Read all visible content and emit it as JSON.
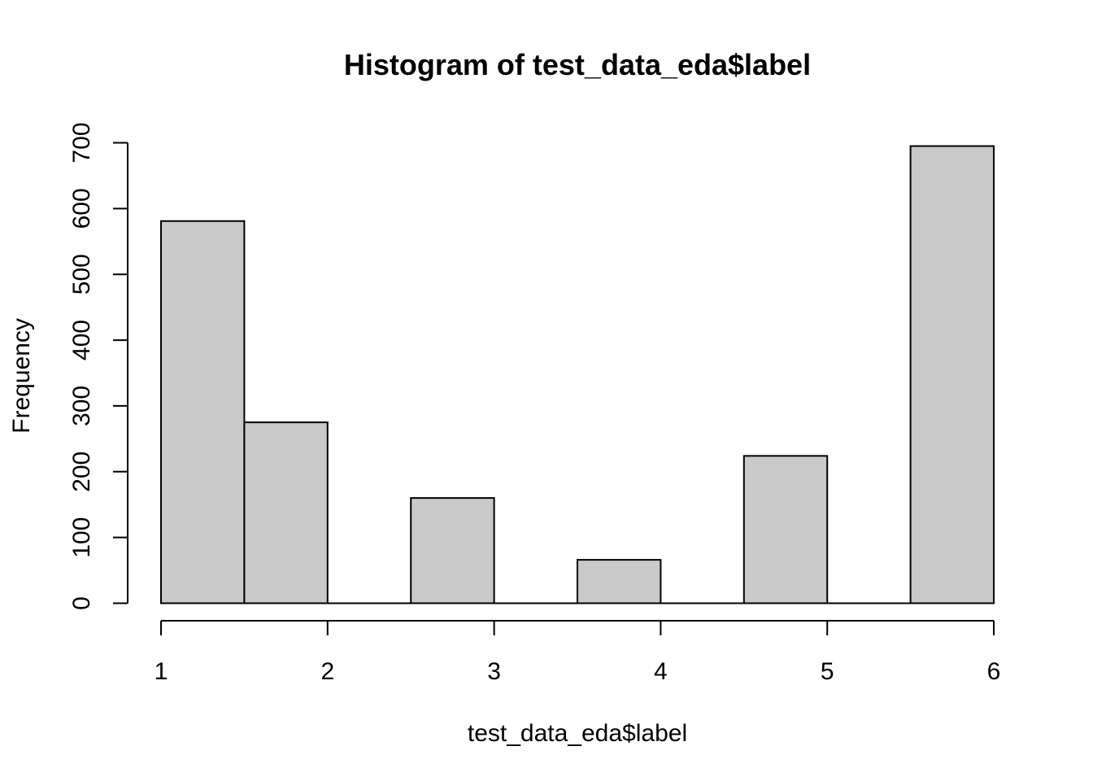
{
  "chart_data": {
    "type": "bar",
    "title": "Histogram of test_data_eda$label",
    "xlabel": "test_data_eda$label",
    "ylabel": "Frequency",
    "bins": [
      {
        "start": 1.0,
        "end": 1.5,
        "count": 581
      },
      {
        "start": 1.5,
        "end": 2.0,
        "count": 275
      },
      {
        "start": 2.0,
        "end": 2.5,
        "count": 0
      },
      {
        "start": 2.5,
        "end": 3.0,
        "count": 160
      },
      {
        "start": 3.0,
        "end": 3.5,
        "count": 0
      },
      {
        "start": 3.5,
        "end": 4.0,
        "count": 66
      },
      {
        "start": 4.0,
        "end": 4.5,
        "count": 0
      },
      {
        "start": 4.5,
        "end": 5.0,
        "count": 224
      },
      {
        "start": 5.0,
        "end": 5.5,
        "count": 0
      },
      {
        "start": 5.5,
        "end": 6.0,
        "count": 695
      }
    ],
    "xlim": [
      1,
      6
    ],
    "ylim": [
      0,
      700
    ],
    "x_ticks": [
      "1",
      "2",
      "3",
      "4",
      "5",
      "6"
    ],
    "y_ticks": [
      "0",
      "100",
      "200",
      "300",
      "400",
      "500",
      "600",
      "700"
    ],
    "bar_fill": "#c9c9c9",
    "grid": false,
    "legend": "none"
  }
}
